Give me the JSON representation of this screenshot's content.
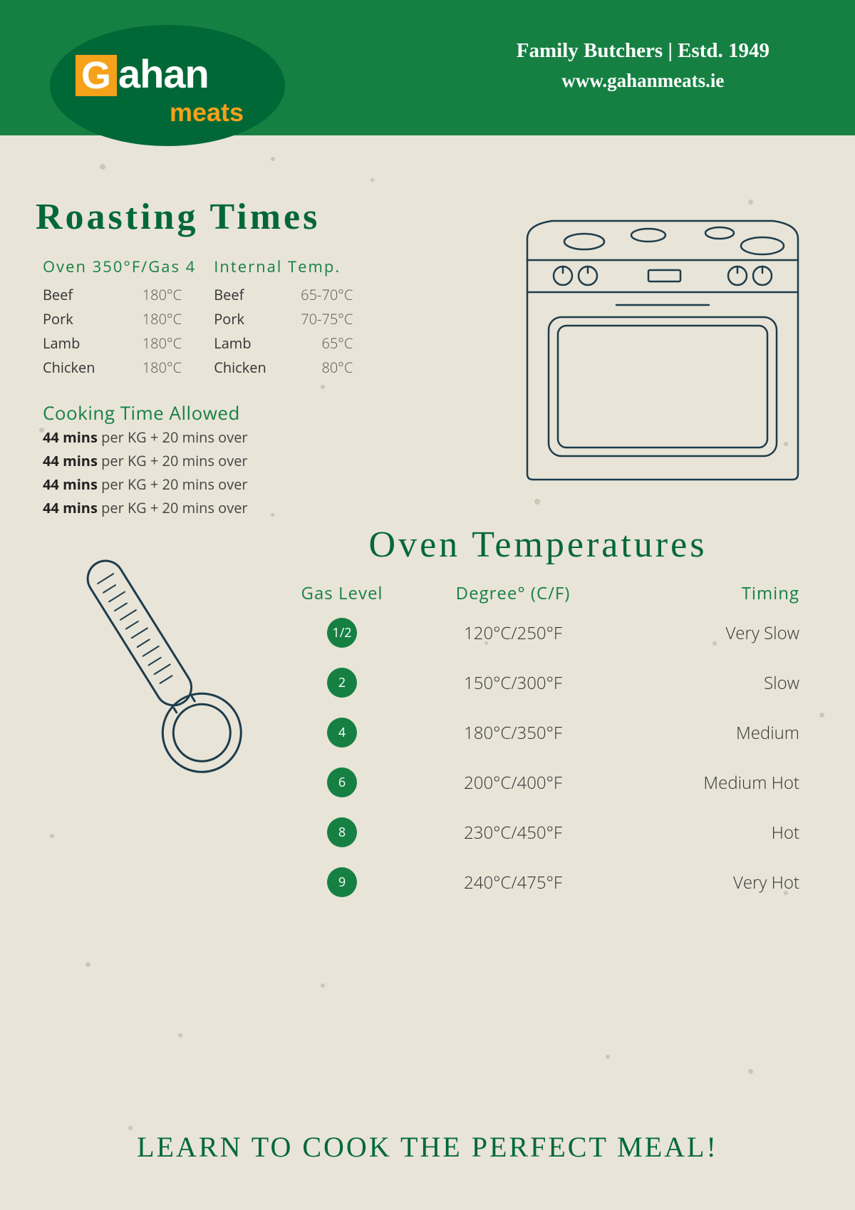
{
  "colors": {
    "header_bg": "#168043",
    "logo_oval": "#006837",
    "logo_orange": "#f5a11a",
    "page_bg": "#e8e4d7",
    "title_green": "#006837",
    "accent_green": "#168043",
    "text_dark": "#333333",
    "stroke": "#1d3c4c"
  },
  "logo": {
    "g": "G",
    "ahan": "ahan",
    "meats": "meats"
  },
  "header": {
    "line1": "Family Butchers | Estd. 1949",
    "line2": "www.gahanmeats.ie"
  },
  "roasting": {
    "title": "Roasting Times",
    "col1_header": "Oven 350°F/Gas 4",
    "col2_header": "Internal Temp.",
    "rows": [
      {
        "meat": "Beef",
        "oven": "180°C",
        "internal": "65-70°C"
      },
      {
        "meat": "Pork",
        "oven": "180°C",
        "internal": "70-75°C"
      },
      {
        "meat": "Lamb",
        "oven": "180°C",
        "internal": "65°C"
      },
      {
        "meat": "Chicken",
        "oven": "180°C",
        "internal": "80°C"
      }
    ]
  },
  "cooking_time": {
    "title": "Cooking Time Allowed",
    "bold": "44 mins",
    "rest": " per KG + 20 mins over",
    "count": 4
  },
  "oven_temps": {
    "title": "Oven Temperatures",
    "headers": {
      "gas": "Gas Level",
      "deg": "Degree° (C/F)",
      "timing": "Timing"
    },
    "rows": [
      {
        "gas": "1/2",
        "deg": "120°C/250°F",
        "timing": "Very Slow"
      },
      {
        "gas": "2",
        "deg": "150°C/300°F",
        "timing": "Slow"
      },
      {
        "gas": "4",
        "deg": "180°C/350°F",
        "timing": "Medium"
      },
      {
        "gas": "6",
        "deg": "200°C/400°F",
        "timing": "Medium Hot"
      },
      {
        "gas": "8",
        "deg": "230°C/450°F",
        "timing": "Hot"
      },
      {
        "gas": "9",
        "deg": "240°C/475°F",
        "timing": "Very Hot"
      }
    ]
  },
  "footer": "LEARN TO COOK THE PERFECT MEAL!"
}
